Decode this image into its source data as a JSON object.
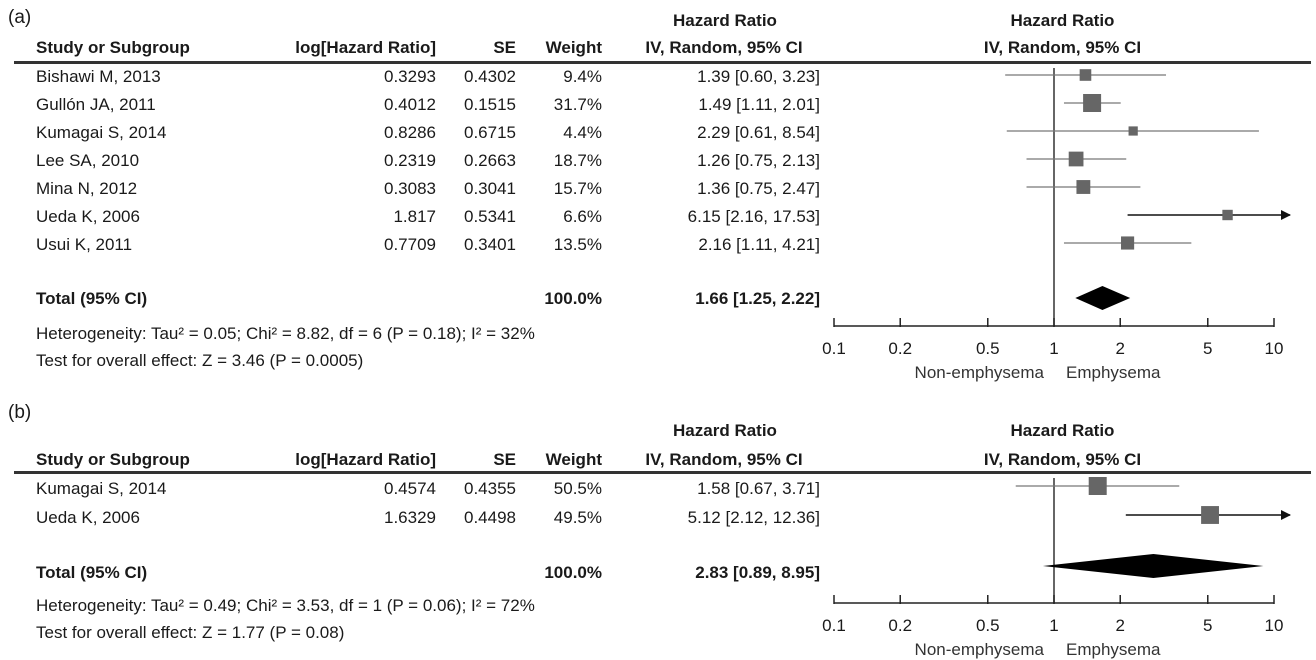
{
  "panels": [
    {
      "label": "(a)",
      "header": {
        "group_line1": "Hazard Ratio",
        "study": "Study or Subgroup",
        "log_hr": "log[Hazard Ratio]",
        "se": "SE",
        "weight": "Weight",
        "ci": "IV, Random, 95% CI",
        "plot_line1": "Hazard Ratio",
        "plot_line2": "IV, Random, 95% CI"
      },
      "studies": [
        {
          "name": "Bishawi M, 2013",
          "log_hr": "0.3293",
          "se": "0.4302",
          "weight": "9.4%",
          "ci": "1.39 [0.60, 3.23]"
        },
        {
          "name": "Gullón JA, 2011",
          "log_hr": "0.4012",
          "se": "0.1515",
          "weight": "31.7%",
          "ci": "1.49 [1.11, 2.01]"
        },
        {
          "name": "Kumagai S, 2014",
          "log_hr": "0.8286",
          "se": "0.6715",
          "weight": "4.4%",
          "ci": "2.29 [0.61, 8.54]"
        },
        {
          "name": "Lee SA, 2010",
          "log_hr": "0.2319",
          "se": "0.2663",
          "weight": "18.7%",
          "ci": "1.26 [0.75, 2.13]"
        },
        {
          "name": "Mina N, 2012",
          "log_hr": "0.3083",
          "se": "0.3041",
          "weight": "15.7%",
          "ci": "1.36 [0.75, 2.47]"
        },
        {
          "name": "Ueda K, 2006",
          "log_hr": "1.817",
          "se": "0.5341",
          "weight": "6.6%",
          "ci": "6.15 [2.16, 17.53]"
        },
        {
          "name": "Usui K, 2011",
          "log_hr": "0.7709",
          "se": "0.3401",
          "weight": "13.5%",
          "ci": "2.16 [1.11, 4.21]"
        }
      ],
      "total": {
        "label": "Total (95% CI)",
        "weight": "100.0%",
        "ci": "1.66 [1.25, 2.22]"
      },
      "heterogeneity": "Heterogeneity: Tau² = 0.05; Chi² = 8.82, df = 6 (P = 0.18); I² = 32%",
      "overall_effect": "Test for overall effect: Z = 3.46 (P = 0.0005)",
      "axis": {
        "ticks": [
          "0.1",
          "0.2",
          "0.5",
          "1",
          "2",
          "5",
          "10"
        ],
        "left_label": "Non-emphysema",
        "right_label": "Emphysema"
      }
    },
    {
      "label": "(b)",
      "header": {
        "group_line1": "Hazard Ratio",
        "study": "Study or Subgroup",
        "log_hr": "log[Hazard Ratio]",
        "se": "SE",
        "weight": "Weight",
        "ci": "IV, Random, 95% CI",
        "plot_line1": "Hazard Ratio",
        "plot_line2": "IV, Random, 95% CI"
      },
      "studies": [
        {
          "name": "Kumagai S, 2014",
          "log_hr": "0.4574",
          "se": "0.4355",
          "weight": "50.5%",
          "ci": "1.58 [0.67, 3.71]"
        },
        {
          "name": "Ueda K, 2006",
          "log_hr": "1.6329",
          "se": "0.4498",
          "weight": "49.5%",
          "ci": "5.12 [2.12, 12.36]"
        }
      ],
      "total": {
        "label": "Total (95% CI)",
        "weight": "100.0%",
        "ci": "2.83 [0.89, 8.95]"
      },
      "heterogeneity": "Heterogeneity: Tau² = 0.49; Chi² = 3.53, df = 1 (P = 0.06); I² = 72%",
      "overall_effect": "Test for overall effect: Z = 1.77 (P = 0.08)",
      "axis": {
        "ticks": [
          "0.1",
          "0.2",
          "0.5",
          "1",
          "2",
          "5",
          "10"
        ],
        "left_label": "Non-emphysema",
        "right_label": "Emphysema"
      }
    }
  ],
  "chart_data": [
    {
      "type": "forest",
      "scale": "log",
      "xlim": [
        0.1,
        10
      ],
      "xticks": [
        0.1,
        0.2,
        0.5,
        1,
        2,
        5,
        10
      ],
      "reference_line": 1,
      "marker_color": "#666666",
      "categories": [
        "Bishawi M, 2013",
        "Gullón JA, 2011",
        "Kumagai S, 2014",
        "Lee SA, 2010",
        "Mina N, 2012",
        "Ueda K, 2006",
        "Usui K, 2011"
      ],
      "hr": [
        1.39,
        1.49,
        2.29,
        1.26,
        1.36,
        6.15,
        2.16
      ],
      "ci_low": [
        0.6,
        1.11,
        0.61,
        0.75,
        0.75,
        2.16,
        1.11
      ],
      "ci_high": [
        3.23,
        2.01,
        8.54,
        2.13,
        2.47,
        17.53,
        4.21
      ],
      "weights": [
        9.4,
        31.7,
        4.4,
        18.7,
        15.7,
        6.6,
        13.5
      ],
      "pooled": {
        "hr": 1.66,
        "ci_low": 1.25,
        "ci_high": 2.22
      }
    },
    {
      "type": "forest",
      "scale": "log",
      "xlim": [
        0.1,
        10
      ],
      "xticks": [
        0.1,
        0.2,
        0.5,
        1,
        2,
        5,
        10
      ],
      "reference_line": 1,
      "marker_color": "#666666",
      "categories": [
        "Kumagai S, 2014",
        "Ueda K, 2006"
      ],
      "hr": [
        1.58,
        5.12
      ],
      "ci_low": [
        0.67,
        2.12
      ],
      "ci_high": [
        3.71,
        12.36
      ],
      "weights": [
        50.5,
        49.5
      ],
      "pooled": {
        "hr": 2.83,
        "ci_low": 0.89,
        "ci_high": 8.95
      }
    }
  ]
}
